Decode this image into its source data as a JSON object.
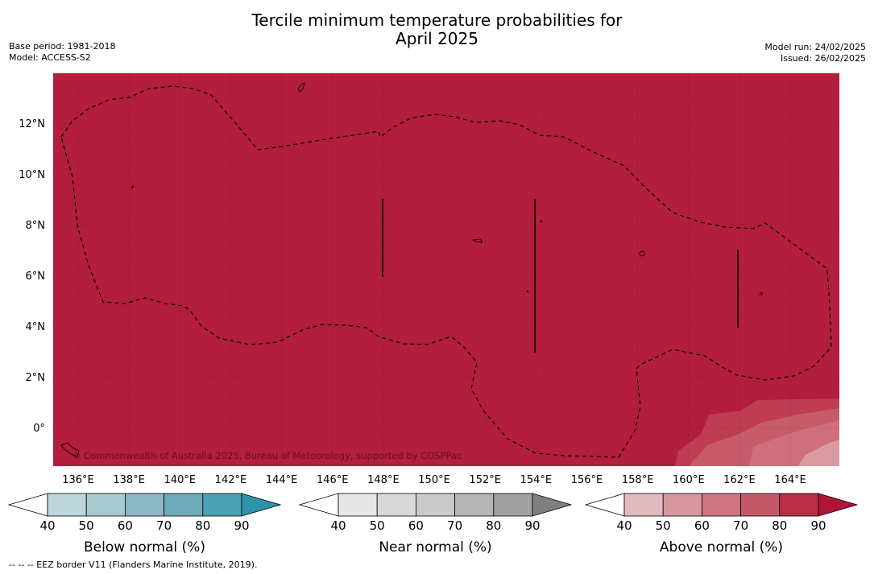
{
  "header": {
    "title_line1": "Tercile minimum temperature probabilities for",
    "title_line2": "April 2025",
    "base_period": "Base period: 1981-2018",
    "model": "Model: ACCESS-S2",
    "model_run": "Model run: 24/02/2025",
    "issued": "Issued: 26/02/2025"
  },
  "map": {
    "fill_color": "#b21e3b",
    "watermark": "© Commonwealth of Australia 2025, Bureau of Meteorology, supported by COSPPac",
    "lon_labels": [
      "136°E",
      "138°E",
      "140°E",
      "142°E",
      "144°E",
      "146°E",
      "148°E",
      "150°E",
      "152°E",
      "154°E",
      "156°E",
      "158°E",
      "160°E",
      "162°E",
      "164°E"
    ],
    "lat_labels": [
      "12°N",
      "10°N",
      "8°N",
      "6°N",
      "4°N",
      "2°N",
      "0°"
    ]
  },
  "colorbars": [
    {
      "name": "Below normal (%)",
      "ticks": [
        "40",
        "50",
        "60",
        "70",
        "80",
        "90"
      ],
      "colors": [
        "#ffffff",
        "#bdd5dc",
        "#a8c9d0",
        "#8cb9c3",
        "#6eaab8",
        "#4aa1b2",
        "#2e93a8"
      ]
    },
    {
      "name": "Near normal (%)",
      "ticks": [
        "40",
        "50",
        "60",
        "70",
        "80",
        "90"
      ],
      "colors": [
        "#ffffff",
        "#e6e6e6",
        "#d9d9d9",
        "#cacaca",
        "#b5b5b5",
        "#a0a0a0",
        "#7f7f7f"
      ]
    },
    {
      "name": "Above normal (%)",
      "ticks": [
        "40",
        "50",
        "60",
        "70",
        "80",
        "90"
      ],
      "colors": [
        "#ffffff",
        "#e2b9bf",
        "#d7979f",
        "#cd7680",
        "#c35a67",
        "#b92e46",
        "#b0143a"
      ]
    }
  ],
  "footnote": "--  --  -- EEZ border V11 (Flanders Marine Institute, 2019)."
}
